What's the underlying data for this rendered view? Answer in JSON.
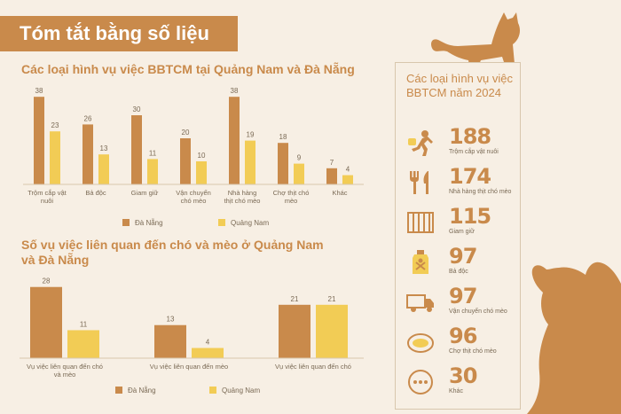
{
  "banner": {
    "title": "Tóm tắt bằng số liệu"
  },
  "chart_data": [
    {
      "type": "bar",
      "title": "Các loại hình vụ việc BBTCM tại Quảng Nam và Đà Nẵng",
      "categories": [
        "Trộm cắp vật nuôi",
        "Bả độc",
        "Giam giữ",
        "Vận chuyển chó mèo",
        "Nhà hàng thịt chó mèo",
        "Chợ thịt chó mèo",
        "Khác"
      ],
      "series": [
        {
          "name": "Đà Nẵng",
          "values": [
            38,
            26,
            30,
            20,
            38,
            18,
            7
          ],
          "color": "#c98a4b"
        },
        {
          "name": "Quảng Nam",
          "values": [
            23,
            13,
            11,
            10,
            19,
            9,
            4
          ],
          "color": "#f2cc55"
        }
      ],
      "ylim": [
        0,
        40
      ],
      "legend": "bottom",
      "grid": false
    },
    {
      "type": "bar",
      "title": "Số vụ việc liên quan đến chó và mèo ở Quảng Nam và Đà Nẵng",
      "categories": [
        "Vụ việc liên quan đến chó và mèo",
        "Vụ việc liên quan đến mèo",
        "Vụ việc liên quan đến chó"
      ],
      "series": [
        {
          "name": "Đà Nẵng",
          "values": [
            28,
            13,
            21
          ],
          "color": "#c98a4b"
        },
        {
          "name": "Quảng Nam",
          "values": [
            11,
            4,
            21
          ],
          "color": "#f2cc55"
        }
      ],
      "ylim": [
        0,
        30
      ],
      "legend": "bottom",
      "grid": false
    }
  ],
  "panel": {
    "title": "Các loại hình vụ việc BBTCM năm 2024",
    "stats": [
      {
        "value": "188",
        "label": "Trộm cắp vật nuôi",
        "icon": "thief-running-icon"
      },
      {
        "value": "174",
        "label": "Nhà hàng thịt chó mèo",
        "icon": "fork-knife-icon"
      },
      {
        "value": "115",
        "label": "Giam giữ",
        "icon": "cage-icon"
      },
      {
        "value": "97",
        "label": "Bả độc",
        "icon": "poison-bottle-icon"
      },
      {
        "value": "97",
        "label": "Vận chuyển chó mèo",
        "icon": "truck-icon"
      },
      {
        "value": "96",
        "label": "Chợ thịt chó mèo",
        "icon": "meat-icon"
      },
      {
        "value": "30",
        "label": "Khác",
        "icon": "more-dots-icon"
      }
    ]
  },
  "colors": {
    "accent": "#c98a4b",
    "secondary": "#f2cc55",
    "background": "#f7efe4"
  }
}
